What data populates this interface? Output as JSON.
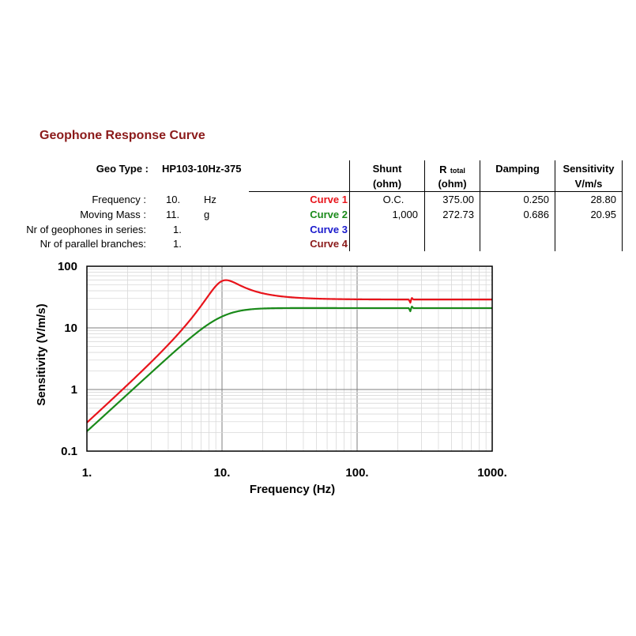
{
  "header": {
    "title": "Geophone Response Curve"
  },
  "geo_type": {
    "label": "Geo Type :",
    "value": "HP103-10Hz-375"
  },
  "params": [
    {
      "label": "Frequency :",
      "value": "10.",
      "unit": "Hz"
    },
    {
      "label": "Moving Mass :",
      "value": "11.",
      "unit": "g"
    },
    {
      "label": "Nr of geophones in series:",
      "value": "1.",
      "unit": ""
    },
    {
      "label": "Nr of parallel branches:",
      "value": "1.",
      "unit": ""
    }
  ],
  "table": {
    "headers": {
      "shunt": [
        "Shunt",
        "(ohm)"
      ],
      "rtotal_main": "R",
      "rtotal_sub": "total",
      "rtotal_unit": "(ohm)",
      "damping": "Damping",
      "sensitivity": [
        "Sensitivity",
        "V/m/s"
      ]
    },
    "rows": [
      {
        "curve": "Curve 1",
        "color": "#e8141b",
        "shunt": "O.C.",
        "rtotal": "375.00",
        "damping": "0.250",
        "sensitivity": "28.80"
      },
      {
        "curve": "Curve 2",
        "color": "#1a8a1a",
        "shunt": "1,000",
        "rtotal": "272.73",
        "damping": "0.686",
        "sensitivity": "20.95"
      },
      {
        "curve": "Curve 3",
        "color": "#1a1acc",
        "shunt": "",
        "rtotal": "",
        "damping": "",
        "sensitivity": ""
      },
      {
        "curve": "Curve 4",
        "color": "#8b1a1a",
        "shunt": "",
        "rtotal": "",
        "damping": "",
        "sensitivity": ""
      }
    ]
  },
  "chart_data": {
    "type": "line",
    "xlabel": "Frequency (Hz)",
    "ylabel": "Sensitivity (V/m/s)",
    "xscale": "log",
    "yscale": "log",
    "xlim": [
      1,
      1000
    ],
    "ylim": [
      0.1,
      100
    ],
    "xticks": [
      "1.",
      "10.",
      "100.",
      "1000."
    ],
    "yticks": [
      "0.1",
      "1",
      "10",
      "100"
    ],
    "grid": true,
    "series": [
      {
        "name": "Curve 1",
        "color": "#e8141b",
        "f0": 10,
        "damping": 0.25,
        "sensitivity": 28.8,
        "spurious_hz": 250
      },
      {
        "name": "Curve 2",
        "color": "#1a8a1a",
        "f0": 10,
        "damping": 0.686,
        "sensitivity": 20.95,
        "spurious_hz": 250
      }
    ]
  }
}
